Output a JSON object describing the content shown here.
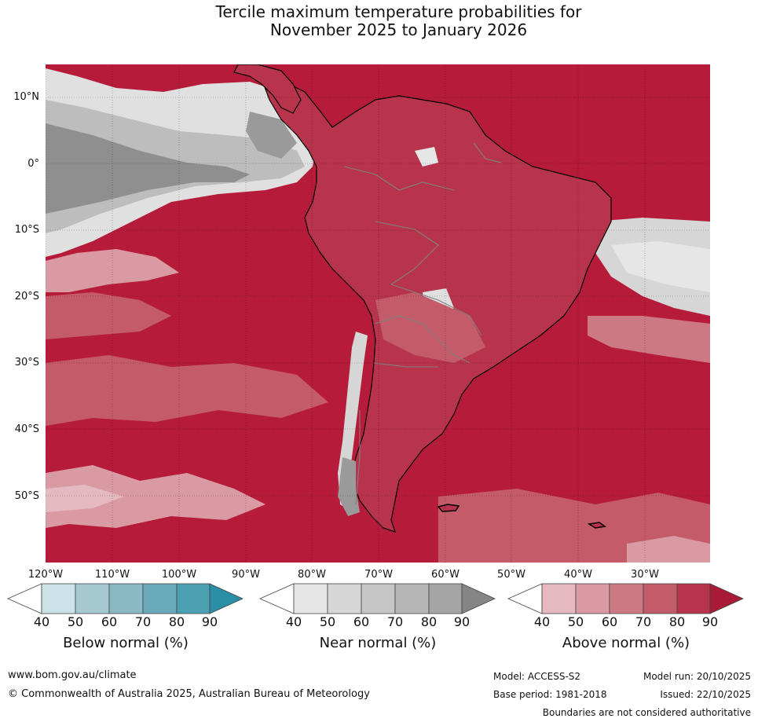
{
  "title": {
    "line1": "Tercile maximum temperature probabilities for",
    "line2": "November 2025 to January 2026"
  },
  "map": {
    "region": "South America and adjacent Pacific and Atlantic oceans",
    "lat_labels": [
      "10°N",
      "0°",
      "10°S",
      "20°S",
      "30°S",
      "40°S",
      "50°S"
    ],
    "lon_labels": [
      "120°W",
      "110°W",
      "100°W",
      "90°W",
      "80°W",
      "70°W",
      "60°W",
      "50°W",
      "40°W",
      "30°W"
    ]
  },
  "colorbars": [
    {
      "caption": "Below normal (%)",
      "ticks": [
        "40",
        "50",
        "60",
        "70",
        "80",
        "90"
      ],
      "colors": [
        "#ffffff",
        "#cbe2e8",
        "#a6c9d1",
        "#8ab8c5",
        "#6aaaba",
        "#4ba1b2",
        "#2b8ea7"
      ]
    },
    {
      "caption": "Near normal (%)",
      "ticks": [
        "40",
        "50",
        "60",
        "70",
        "80",
        "90"
      ],
      "colors": [
        "#ffffff",
        "#e6e6e6",
        "#d6d6d6",
        "#c6c6c6",
        "#b6b6b6",
        "#a4a4a4",
        "#858585"
      ]
    },
    {
      "caption": "Above normal (%)",
      "ticks": [
        "40",
        "50",
        "60",
        "70",
        "80",
        "90"
      ],
      "colors": [
        "#ffffff",
        "#e4b9bf",
        "#d99aa3",
        "#cd7983",
        "#c45b68",
        "#b8344c",
        "#a81a35"
      ]
    }
  ],
  "footer": {
    "website": "www.bom.gov.au/climate",
    "copyright": "© Commonwealth of Australia 2025, Australian Bureau of Meteorology",
    "model": "Model: ACCESS-S2",
    "model_run": "Model run: 20/10/2025",
    "base_period": "Base period: 1981-2018",
    "issued": "Issued: 22/10/2025",
    "disclaimer": "Boundaries are not considered authoritative"
  }
}
